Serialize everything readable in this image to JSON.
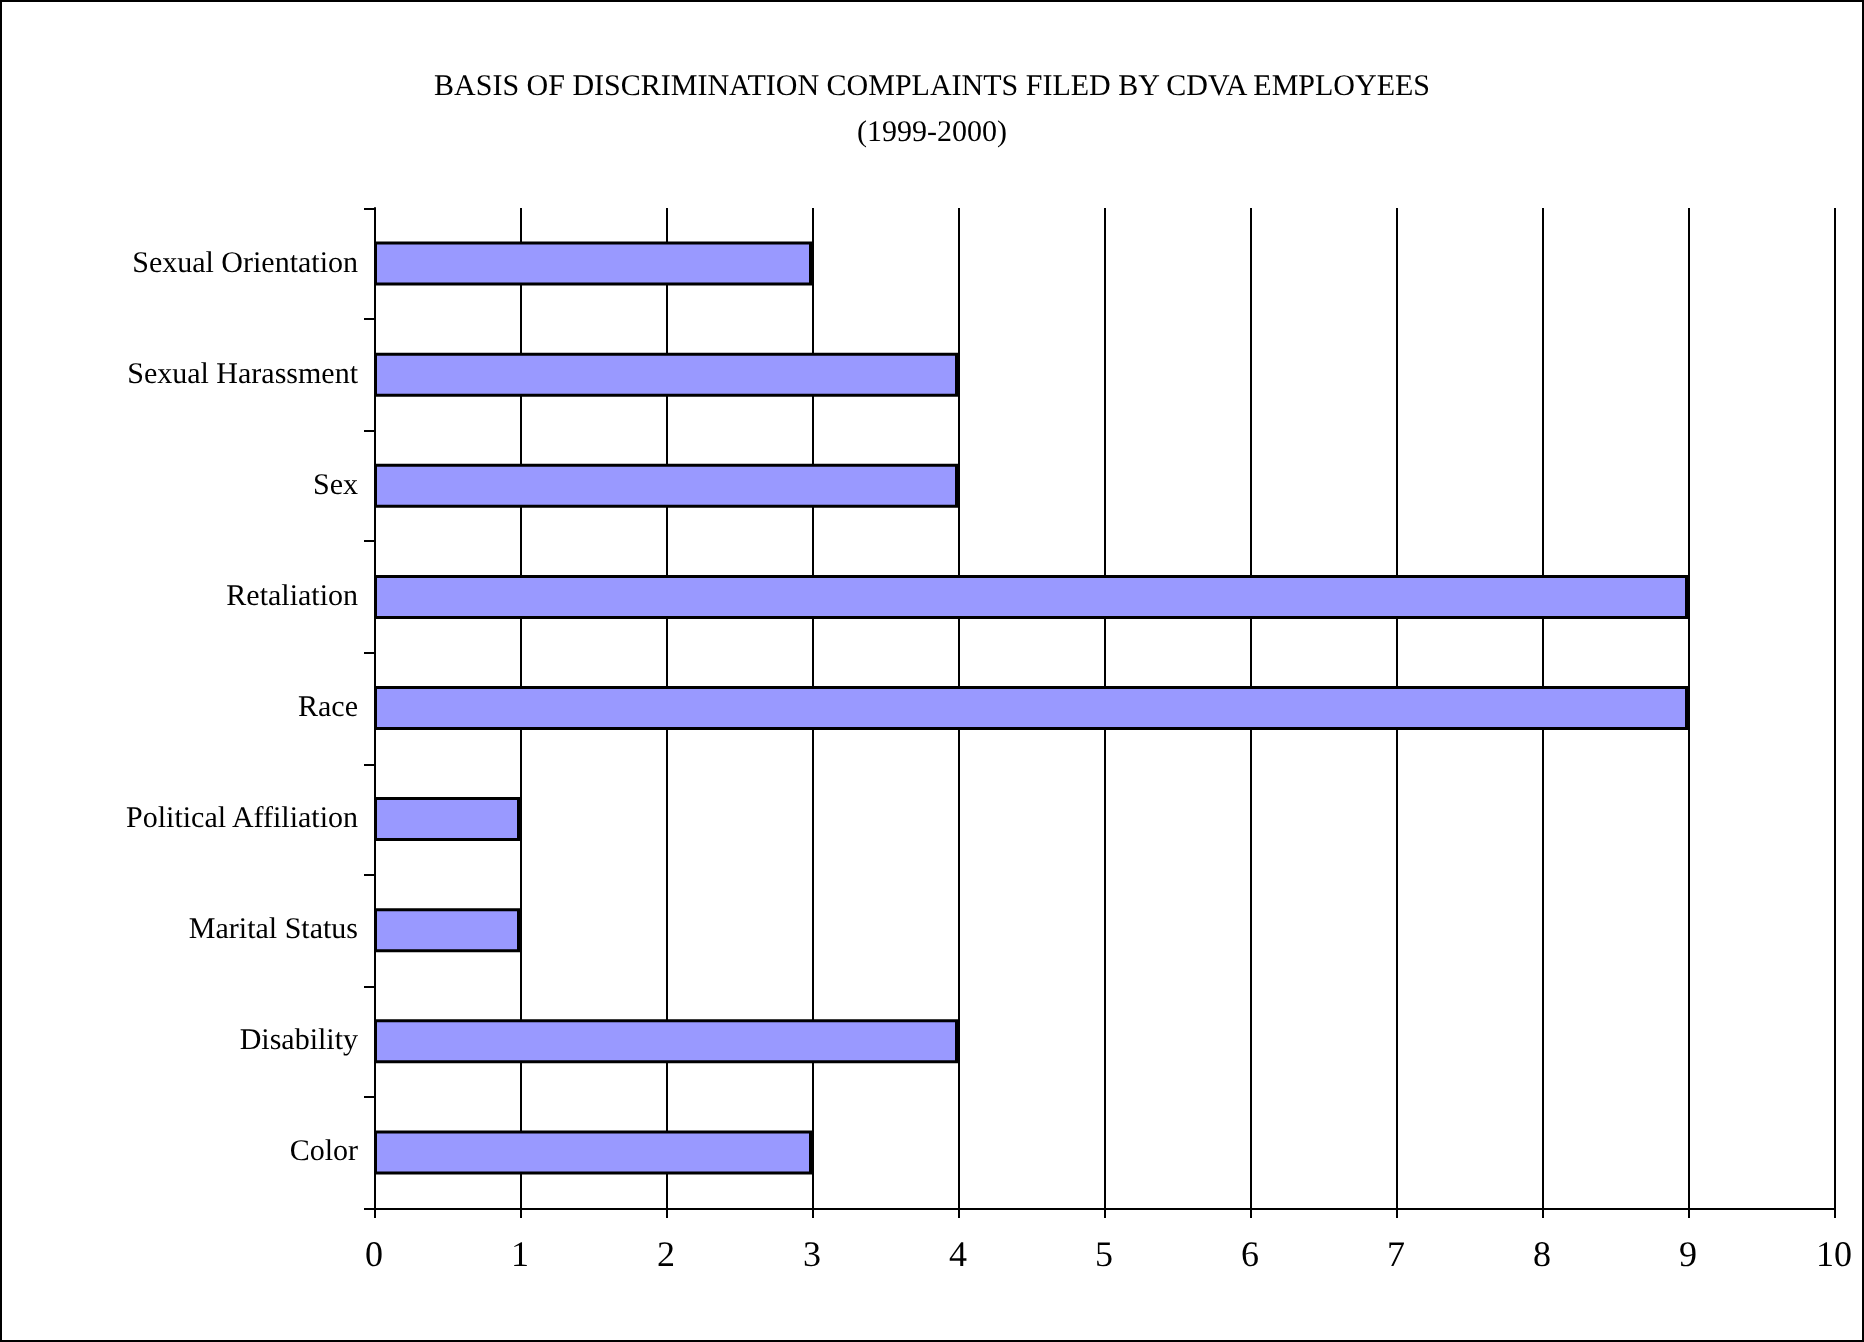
{
  "chart_data": {
    "type": "bar",
    "orientation": "horizontal",
    "title": "BASIS OF DISCRIMINATION COMPLAINTS FILED BY CDVA EMPLOYEES",
    "subtitle": "(1999-2000)",
    "categories": [
      "Sexual Orientation",
      "Sexual Harassment",
      "Sex",
      "Retaliation",
      "Race",
      "Political Affiliation",
      "Marital Status",
      "Disability",
      "Color"
    ],
    "values": [
      3,
      4,
      4,
      9,
      9,
      1,
      1,
      4,
      3
    ],
    "color": "#9999ff",
    "xlim": [
      0,
      10
    ],
    "xticks": [
      0,
      1,
      2,
      3,
      4,
      5,
      6,
      7,
      8,
      9,
      10
    ],
    "grid": "x"
  }
}
